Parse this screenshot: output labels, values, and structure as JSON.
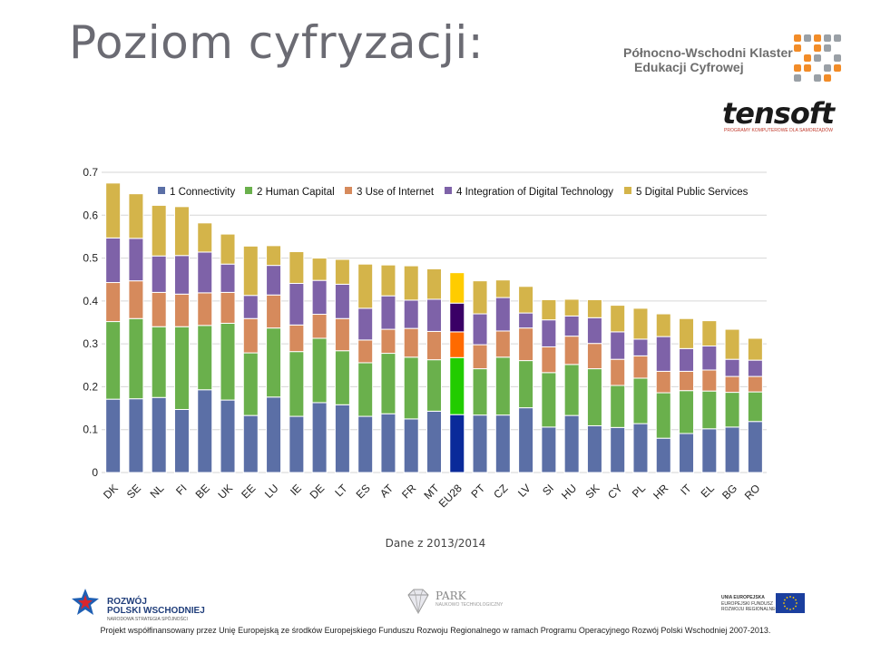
{
  "slide": {
    "title": "Poziom cyfryzacji:",
    "source_note": "Dane z 2013/2014",
    "footer_text": "Projekt współfinansowany przez Unię Europejską ze środków Europejskiego Funduszu Rozwoju Regionalnego w ramach Programu Operacyjnego Rozwój Polski Wschodniej 2007-2013."
  },
  "logos": {
    "klaster_line1": "Północno-Wschodni Klaster",
    "klaster_line2": "Edukacji Cyfrowej",
    "tensoft_name": "tensoft",
    "tensoft_tagline": "PROGRAMY KOMPUTEROWE DLA SAMORZĄDÓW",
    "rpw_line1": "ROZWÓJ",
    "rpw_line2": "POLSKI WSCHODNIEJ",
    "rpw_line3": "NARODOWA STRATEGIA SPÓJNOŚCI",
    "park_name": "PARK",
    "park_sub": "NAUKOWO TECHNOLOGICZNY",
    "ue_line1": "UNIA EUROPEJSKA",
    "ue_line2": "EUROPEJSKI FUNDUSZ",
    "ue_line3": "ROZWOJU REGIONALNEGO"
  },
  "chart_data": {
    "type": "bar",
    "stacked": true,
    "ylim": [
      0,
      0.7
    ],
    "yticks": [
      "0",
      "0.1",
      "0.2",
      "0.3",
      "0.4",
      "0.5",
      "0.6",
      "0.7"
    ],
    "grid": true,
    "legend_position": "top",
    "highlight_category": "EU28",
    "categories": [
      "DK",
      "SE",
      "NL",
      "FI",
      "BE",
      "UK",
      "EE",
      "LU",
      "IE",
      "DE",
      "LT",
      "ES",
      "AT",
      "FR",
      "MT",
      "EU28",
      "PT",
      "CZ",
      "LV",
      "SI",
      "HU",
      "SK",
      "CY",
      "PL",
      "HR",
      "IT",
      "EL",
      "BG",
      "RO"
    ],
    "series": [
      {
        "name": "1 Connectivity",
        "color": "#5b6fa6",
        "highlight_color": "#0a2a9a",
        "values": [
          0.171,
          0.172,
          0.175,
          0.147,
          0.193,
          0.169,
          0.133,
          0.176,
          0.131,
          0.163,
          0.158,
          0.131,
          0.137,
          0.125,
          0.143,
          0.135,
          0.134,
          0.134,
          0.151,
          0.106,
          0.133,
          0.109,
          0.105,
          0.114,
          0.08,
          0.091,
          0.102,
          0.106,
          0.119
        ]
      },
      {
        "name": "2 Human Capital",
        "color": "#6ab04c",
        "highlight_color": "#22cc00",
        "values": [
          0.181,
          0.187,
          0.165,
          0.193,
          0.15,
          0.179,
          0.146,
          0.161,
          0.151,
          0.15,
          0.126,
          0.125,
          0.141,
          0.144,
          0.12,
          0.133,
          0.108,
          0.135,
          0.11,
          0.127,
          0.119,
          0.133,
          0.098,
          0.106,
          0.106,
          0.1,
          0.088,
          0.081,
          0.069
        ]
      },
      {
        "name": "3 Use of Internet",
        "color": "#d68a5c",
        "highlight_color": "#ff6a00",
        "values": [
          0.091,
          0.088,
          0.08,
          0.076,
          0.076,
          0.072,
          0.08,
          0.077,
          0.062,
          0.056,
          0.075,
          0.053,
          0.056,
          0.067,
          0.066,
          0.06,
          0.056,
          0.061,
          0.076,
          0.06,
          0.066,
          0.059,
          0.061,
          0.052,
          0.05,
          0.045,
          0.049,
          0.037,
          0.036
        ]
      },
      {
        "name": "4 Integration of Digital Technology",
        "color": "#7e62a8",
        "highlight_color": "#3a0066",
        "values": [
          0.104,
          0.099,
          0.085,
          0.09,
          0.095,
          0.066,
          0.054,
          0.069,
          0.097,
          0.079,
          0.08,
          0.074,
          0.078,
          0.066,
          0.075,
          0.067,
          0.072,
          0.078,
          0.035,
          0.063,
          0.047,
          0.06,
          0.064,
          0.039,
          0.081,
          0.053,
          0.056,
          0.04,
          0.038
        ]
      },
      {
        "name": "5 Digital Public Services",
        "color": "#d4b44a",
        "highlight_color": "#ffcc00",
        "values": [
          0.128,
          0.104,
          0.118,
          0.114,
          0.068,
          0.07,
          0.115,
          0.046,
          0.074,
          0.052,
          0.058,
          0.103,
          0.072,
          0.08,
          0.071,
          0.071,
          0.077,
          0.041,
          0.062,
          0.047,
          0.039,
          0.042,
          0.062,
          0.072,
          0.053,
          0.07,
          0.059,
          0.07,
          0.051
        ]
      }
    ]
  }
}
